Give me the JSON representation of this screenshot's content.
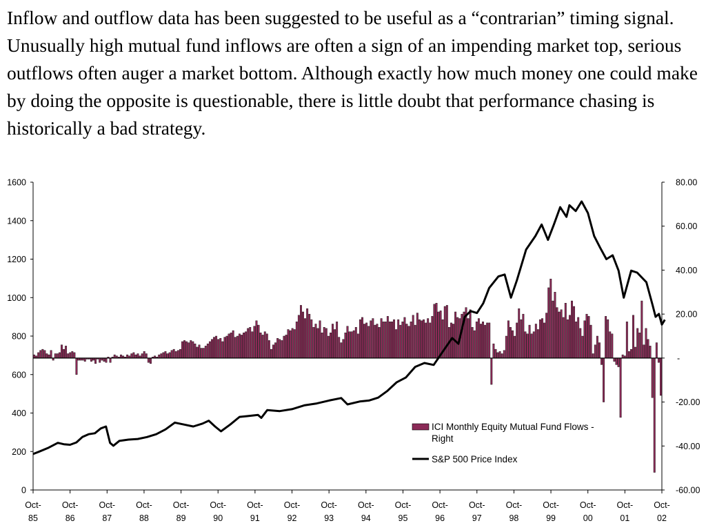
{
  "intro_text": "Inflow and outflow data has been suggested to be useful as a “contrarian” timing signal.  Unusually high mutual fund inflows are often a sign of an impending market top, serious outflows often auger a market bottom.  Although exactly how much money one could make by doing the opposite is questionable, there is little doubt that performance chasing is historically a bad strategy.",
  "colors": {
    "bar": "#8B2A57",
    "line": "#000000",
    "axis": "#000000"
  },
  "chart_data": {
    "type": "bar+line",
    "title": "",
    "x_tick_labels": [
      [
        "Oct-",
        "85"
      ],
      [
        "Oct-",
        "86"
      ],
      [
        "Oct-",
        "87"
      ],
      [
        "Oct-",
        "88"
      ],
      [
        "Oct-",
        "89"
      ],
      [
        "Oct-",
        "90"
      ],
      [
        "Oct-",
        "91"
      ],
      [
        "Oct-",
        "92"
      ],
      [
        "Oct-",
        "93"
      ],
      [
        "Oct-",
        "94"
      ],
      [
        "Oct-",
        "95"
      ],
      [
        "Oct-",
        "96"
      ],
      [
        "Oct-",
        "97"
      ],
      [
        "Oct-",
        "98"
      ],
      [
        "Oct-",
        "99"
      ],
      [
        "Oct-",
        "00"
      ],
      [
        "Oct-",
        "01"
      ],
      [
        "Oct-",
        "02"
      ]
    ],
    "x_range": [
      "Oct 1985",
      "Oct 2002"
    ],
    "left_axis": {
      "min": 0,
      "max": 1600,
      "ticks": [
        "0",
        "200",
        "400",
        "600",
        "800",
        "1000",
        "1200",
        "1400",
        "1600"
      ]
    },
    "right_axis": {
      "min": -60,
      "max": 80,
      "ticks": [
        "-60.00",
        "-40.00",
        "-20.00",
        "-",
        "20.00",
        "40.00",
        "60.00",
        "80.00"
      ]
    },
    "legend": [
      {
        "label": "ICI Monthly Equity Mutual Fund Flows -",
        "label2": "Right",
        "kind": "bar"
      },
      {
        "label": "S&P 500 Price Index",
        "kind": "line"
      }
    ],
    "series": [
      {
        "name": "ICI Monthly Equity Mutual Fund Flows - Right",
        "axis": "right",
        "kind": "bar",
        "start": "1985-10",
        "freq": "quarter-month",
        "values": [
          1.5,
          1.0,
          2.5,
          3.5,
          4.0,
          3.5,
          2.0,
          1.5,
          3.5,
          -1.0,
          2.0,
          2.0,
          2.5,
          6.0,
          4.0,
          5.5,
          2.0,
          2.5,
          3.0,
          2.5,
          -7.5,
          -1.0,
          -1.0,
          -1.0,
          -1.5,
          -0.5,
          -0.5,
          -1.5,
          -1.0,
          -2.5,
          -0.5,
          -2.0,
          -1.0,
          -1.5,
          -2.0,
          0.5,
          -2.0,
          0.5,
          1.5,
          1.0,
          0.5,
          1.5,
          1.0,
          0.5,
          1.5,
          1.0,
          2.0,
          2.5,
          1.5,
          2.0,
          1.0,
          2.0,
          3.0,
          2.0,
          -2.0,
          -2.5,
          0.5,
          1.0,
          0.5,
          1.5,
          2.0,
          2.5,
          3.0,
          2.0,
          2.5,
          3.5,
          4.0,
          3.0,
          3.5,
          4.0,
          7.5,
          8.0,
          7.5,
          7.0,
          8.0,
          7.5,
          6.5,
          5.0,
          6.0,
          4.5,
          4.5,
          5.5,
          6.5,
          7.5,
          8.5,
          9.5,
          10.0,
          8.5,
          9.0,
          7.5,
          9.5,
          10.0,
          11.0,
          11.5,
          12.5,
          9.5,
          10.0,
          11.0,
          10.5,
          11.5,
          12.0,
          13.5,
          14.0,
          12.0,
          14.5,
          17.0,
          15.0,
          11.5,
          10.5,
          12.0,
          11.0,
          8.0,
          4.0,
          6.0,
          7.0,
          9.0,
          8.5,
          8.0,
          10.0,
          10.5,
          13.0,
          12.5,
          13.5,
          13.0,
          16.5,
          19.5,
          24.0,
          21.0,
          18.0,
          22.5,
          20.0,
          17.5,
          14.0,
          15.5,
          13.5,
          17.0,
          11.5,
          14.0,
          13.5,
          10.0,
          11.5,
          15.5,
          13.0,
          16.5,
          9.5,
          7.0,
          8.5,
          11.5,
          14.5,
          12.0,
          12.0,
          12.5,
          14.0,
          11.0,
          17.5,
          18.5,
          15.5,
          16.0,
          14.5,
          17.0,
          18.0,
          15.0,
          15.5,
          14.0,
          18.0,
          16.5,
          16.5,
          19.0,
          16.5,
          16.5,
          17.5,
          13.0,
          17.5,
          15.0,
          16.5,
          18.5,
          15.5,
          14.5,
          16.5,
          19.5,
          15.0,
          20.5,
          17.5,
          17.0,
          17.5,
          16.0,
          18.0,
          16.0,
          19.0,
          24.5,
          25.0,
          21.0,
          21.5,
          17.5,
          23.5,
          24.0,
          14.0,
          16.0,
          15.5,
          21.0,
          18.5,
          18.0,
          20.0,
          21.0,
          23.0,
          18.0,
          22.0,
          14.0,
          12.5,
          16.5,
          18.0,
          15.5,
          16.5,
          15.0,
          16.0,
          16.0,
          -12.0,
          6.5,
          4.0,
          2.5,
          3.0,
          2.0,
          3.5,
          10.0,
          17.0,
          14.0,
          12.5,
          10.0,
          16.0,
          22.5,
          17.5,
          20.0,
          12.0,
          11.0,
          15.0,
          11.0,
          12.0,
          15.5,
          13.0,
          17.5,
          18.0,
          16.0,
          20.5,
          32.0,
          36.0,
          26.0,
          30.0,
          23.0,
          21.0,
          22.0,
          18.5,
          25.0,
          17.5,
          19.5,
          26.0,
          23.5,
          16.5,
          18.5,
          13.5,
          10.0,
          17.0,
          20.0,
          19.0,
          15.0,
          2.0,
          6.0,
          10.0,
          7.0,
          -3.0,
          -20.0,
          19.0,
          17.5,
          12.0,
          11.0,
          -1.5,
          -3.0,
          -4.0,
          -27.0,
          1.5,
          1.0,
          16.5,
          3.0,
          4.0,
          19.5,
          5.0,
          13.5,
          11.5,
          26.0,
          6.0,
          13.5,
          8.5,
          5.5,
          -18.0,
          -52.0,
          7.0,
          -2.0,
          -17.0
        ]
      },
      {
        "name": "S&P 500 Price Index",
        "axis": "left",
        "kind": "line",
        "points": [
          [
            1985.75,
            187
          ],
          [
            1985.92,
            200
          ],
          [
            1986.17,
            220
          ],
          [
            1986.42,
            245
          ],
          [
            1986.58,
            238
          ],
          [
            1986.75,
            235
          ],
          [
            1986.92,
            247
          ],
          [
            1987.08,
            275
          ],
          [
            1987.25,
            290
          ],
          [
            1987.42,
            295
          ],
          [
            1987.58,
            320
          ],
          [
            1987.72,
            330
          ],
          [
            1987.83,
            245
          ],
          [
            1987.92,
            230
          ],
          [
            1988.08,
            255
          ],
          [
            1988.33,
            262
          ],
          [
            1988.58,
            265
          ],
          [
            1988.83,
            275
          ],
          [
            1989.08,
            290
          ],
          [
            1989.33,
            315
          ],
          [
            1989.58,
            350
          ],
          [
            1989.83,
            340
          ],
          [
            1990.08,
            330
          ],
          [
            1990.33,
            345
          ],
          [
            1990.5,
            360
          ],
          [
            1990.67,
            330
          ],
          [
            1990.83,
            305
          ],
          [
            1991.08,
            340
          ],
          [
            1991.33,
            380
          ],
          [
            1991.58,
            385
          ],
          [
            1991.83,
            390
          ],
          [
            1991.92,
            375
          ],
          [
            1992.08,
            415
          ],
          [
            1992.42,
            410
          ],
          [
            1992.75,
            420
          ],
          [
            1993.08,
            440
          ],
          [
            1993.42,
            450
          ],
          [
            1993.75,
            465
          ],
          [
            1994.08,
            478
          ],
          [
            1994.25,
            445
          ],
          [
            1994.58,
            460
          ],
          [
            1994.83,
            465
          ],
          [
            1995.08,
            480
          ],
          [
            1995.33,
            515
          ],
          [
            1995.58,
            560
          ],
          [
            1995.83,
            585
          ],
          [
            1996.08,
            640
          ],
          [
            1996.33,
            660
          ],
          [
            1996.58,
            650
          ],
          [
            1996.83,
            720
          ],
          [
            1997.08,
            790
          ],
          [
            1997.25,
            760
          ],
          [
            1997.42,
            900
          ],
          [
            1997.58,
            930
          ],
          [
            1997.75,
            920
          ],
          [
            1997.92,
            970
          ],
          [
            1998.08,
            1050
          ],
          [
            1998.33,
            1110
          ],
          [
            1998.5,
            1120
          ],
          [
            1998.67,
            1000
          ],
          [
            1998.83,
            1090
          ],
          [
            1999.08,
            1250
          ],
          [
            1999.33,
            1320
          ],
          [
            1999.5,
            1380
          ],
          [
            1999.67,
            1300
          ],
          [
            1999.83,
            1380
          ],
          [
            2000.0,
            1470
          ],
          [
            2000.17,
            1420
          ],
          [
            2000.25,
            1480
          ],
          [
            2000.42,
            1450
          ],
          [
            2000.58,
            1500
          ],
          [
            2000.75,
            1440
          ],
          [
            2000.92,
            1320
          ],
          [
            2001.08,
            1260
          ],
          [
            2001.25,
            1200
          ],
          [
            2001.42,
            1220
          ],
          [
            2001.58,
            1140
          ],
          [
            2001.72,
            1000
          ],
          [
            2001.92,
            1140
          ],
          [
            2002.08,
            1130
          ],
          [
            2002.33,
            1080
          ],
          [
            2002.5,
            960
          ],
          [
            2002.58,
            900
          ],
          [
            2002.67,
            915
          ],
          [
            2002.75,
            860
          ],
          [
            2002.83,
            885
          ]
        ]
      }
    ]
  }
}
